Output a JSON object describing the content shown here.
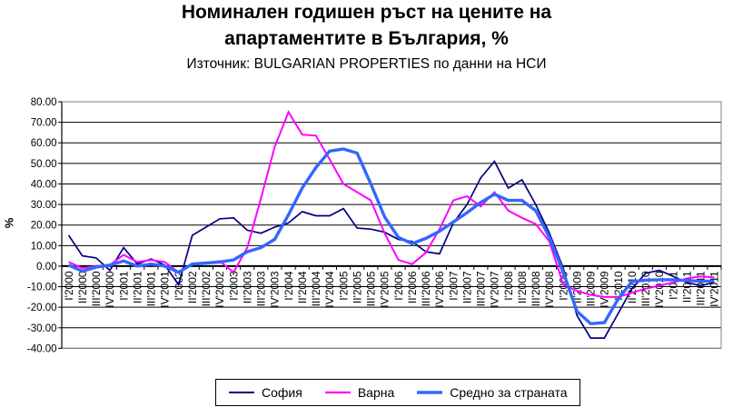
{
  "title_line1": "Номинален годишен ръст на цените на",
  "title_line2": "апартаментите в България, %",
  "subtitle": "Източник: BULGARIAN PROPERTIES по данни на НСИ",
  "chart_data": {
    "type": "line",
    "title": "Номинален годишен ръст на цените на апартаментите в България, %",
    "subtitle": "Източник: BULGARIAN PROPERTIES по данни на НСИ",
    "ylabel": "%",
    "ylim": [
      -40,
      80
    ],
    "ytick_step": 10,
    "ytick_decimals": 2,
    "grid": true,
    "legend_position": "bottom",
    "categories": [
      "I'2000",
      "II'2000",
      "III'2000",
      "IV'2000",
      "I'2001",
      "II'2001",
      "III'2001",
      "IV'2001",
      "I'2002",
      "II'2002",
      "III'2002",
      "IV'2002",
      "I'2003",
      "II'2003",
      "III'2003",
      "IV'2003",
      "I'2004",
      "II'2004",
      "III'2004",
      "IV'2004",
      "I'2005",
      "II'2005",
      "III'2005",
      "IV'2005",
      "I'2006",
      "II'2006",
      "III'2006",
      "IV'2006",
      "I'2007",
      "II'2007",
      "III'2007",
      "IV'2007",
      "I'2008",
      "II'2008",
      "III'2008",
      "IV'2008",
      "I'2009",
      "II'2009",
      "III'2009",
      "IV'2009",
      "I'2010",
      "II'2010",
      "III'2010",
      "IV'2010",
      "I'2011",
      "II'2011",
      "III'2011",
      "IV'2011"
    ],
    "series": [
      {
        "name": "София",
        "color": "#000080",
        "stroke_width": 1.7,
        "values": [
          15,
          5,
          4,
          -2,
          9,
          1,
          3.5,
          0.5,
          -9,
          15,
          19,
          23,
          23.5,
          17.5,
          16,
          19,
          21,
          26.5,
          24.5,
          24.5,
          28,
          18.5,
          18,
          16.5,
          13,
          12,
          7,
          6,
          21,
          30,
          43,
          51,
          38,
          42,
          30,
          16,
          -1,
          -24,
          -35,
          -35,
          -23,
          -11,
          -3.5,
          -2,
          -5,
          -8,
          -9.5,
          -8
        ]
      },
      {
        "name": "Варна",
        "color": "#FF00FF",
        "stroke_width": 2.0,
        "values": [
          2,
          -1,
          0,
          0.5,
          5.5,
          2,
          3,
          2,
          -3,
          1,
          1.5,
          2.5,
          -3,
          9,
          33,
          58,
          75,
          64,
          63.5,
          52,
          40,
          36,
          32,
          16,
          3,
          1,
          6.5,
          18,
          32,
          34,
          29,
          36,
          27,
          23.5,
          20.5,
          12,
          -9,
          -12,
          -14,
          -15,
          -15,
          -13,
          -11,
          -9.5,
          -8,
          -6,
          -5,
          -5.5
        ]
      },
      {
        "name": "Средно за страната",
        "color": "#3366FF",
        "stroke_width": 3.4,
        "values": [
          0.5,
          -2.5,
          -0.5,
          0.5,
          2.5,
          0,
          1,
          0,
          -3,
          1,
          1.5,
          2,
          3,
          7,
          9,
          13,
          25,
          38,
          48,
          56,
          57,
          55,
          40,
          24,
          14,
          11,
          13.5,
          17,
          21.5,
          26,
          31,
          35,
          32,
          32,
          27,
          14,
          -3,
          -22,
          -28,
          -27.5,
          -16,
          -7.5,
          -6.8,
          -6.6,
          -6.6,
          -7,
          -7.3,
          -7.3
        ]
      }
    ]
  }
}
